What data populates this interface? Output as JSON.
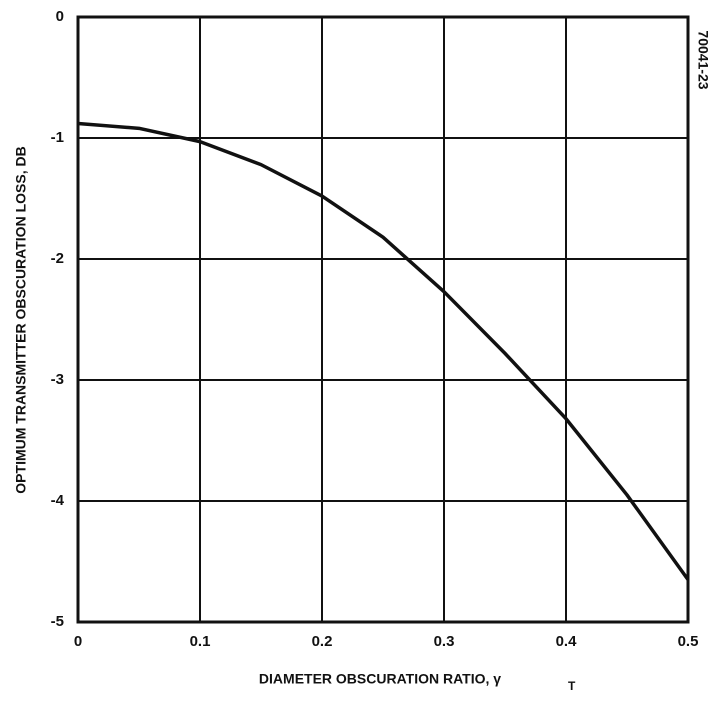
{
  "chart_data": {
    "type": "line",
    "xlabel": "DIAMETER OBSCURATION RATIO, γ",
    "xlabel_subscript": "T",
    "ylabel": "OPTIMUM TRANSMITTER OBSCURATION LOSS, DB",
    "annotation": "70041-23",
    "x": [
      0,
      0.05,
      0.1,
      0.15,
      0.2,
      0.25,
      0.3,
      0.35,
      0.4,
      0.45,
      0.5
    ],
    "series": [
      {
        "color": "#111111",
        "values": [
          -0.88,
          -0.92,
          -1.03,
          -1.22,
          -1.48,
          -1.82,
          -2.27,
          -2.78,
          -3.32,
          -3.95,
          -4.65
        ]
      }
    ],
    "xlim": [
      0,
      0.5
    ],
    "xticks": [
      0,
      0.1,
      0.2,
      0.3,
      0.4,
      0.5
    ],
    "ylim": [
      -5,
      0
    ],
    "yticks": [
      -5,
      -4,
      -3,
      -2,
      -1,
      0
    ],
    "grid": true
  }
}
